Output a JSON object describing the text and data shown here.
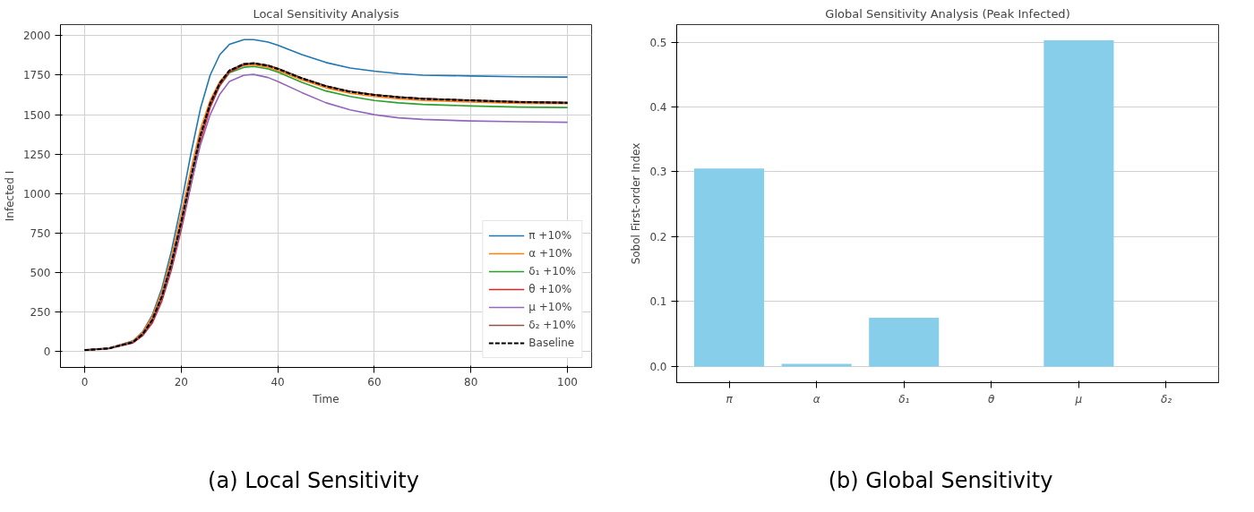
{
  "chart_data": [
    {
      "type": "line",
      "title": "Local Sensitivity Analysis",
      "xlabel": "Time",
      "ylabel": "Infected I",
      "annotations": [
        "(a) Local Sensitivity"
      ],
      "x": [
        0,
        5,
        10,
        12,
        14,
        16,
        18,
        20,
        22,
        24,
        26,
        28,
        30,
        33,
        35,
        38,
        40,
        45,
        50,
        55,
        60,
        65,
        70,
        80,
        90,
        100
      ],
      "xlim": [
        -5,
        105
      ],
      "xticks": [
        0,
        20,
        40,
        60,
        80,
        100
      ],
      "ylim": [
        -100,
        2070
      ],
      "yticks": [
        0,
        250,
        500,
        750,
        1000,
        1250,
        1500,
        1750,
        2000
      ],
      "grid": true,
      "legend": "bottom right",
      "line_style": "solid",
      "marker": "none",
      "series": [
        {
          "name": "π +10%",
          "color": "#1f77b4",
          "values": [
            10,
            22,
            68,
            125,
            230,
            400,
            640,
            930,
            1250,
            1540,
            1750,
            1880,
            1945,
            1975,
            1975,
            1960,
            1940,
            1880,
            1830,
            1795,
            1775,
            1760,
            1750,
            1745,
            1740,
            1738
          ]
        },
        {
          "name": "α +10%",
          "color": "#ff7f0e",
          "values": [
            10,
            22,
            66,
            122,
            220,
            380,
            600,
            870,
            1150,
            1410,
            1590,
            1710,
            1780,
            1812,
            1815,
            1800,
            1780,
            1720,
            1670,
            1635,
            1615,
            1600,
            1590,
            1580,
            1572,
            1570
          ]
        },
        {
          "name": "δ₁ +10%",
          "color": "#2ca02c",
          "values": [
            null,
            null,
            null,
            null,
            null,
            null,
            null,
            null,
            null,
            null,
            1555,
            1685,
            1765,
            1800,
            1805,
            1790,
            1770,
            1705,
            1650,
            1615,
            1590,
            1575,
            1565,
            1555,
            1548,
            1545
          ]
        },
        {
          "name": "θ +10%",
          "color": "#d62728",
          "values": [
            10,
            19,
            55,
            100,
            180,
            320,
            520,
            770,
            1050,
            1330,
            1545,
            1685,
            1770,
            1815,
            1825,
            1812,
            1792,
            1732,
            1682,
            1647,
            1627,
            1612,
            1602,
            1590,
            1580,
            1575
          ]
        },
        {
          "name": "μ +10%",
          "color": "#9467bd",
          "values": [
            10,
            20,
            60,
            108,
            195,
            340,
            540,
            790,
            1060,
            1310,
            1500,
            1630,
            1710,
            1750,
            1755,
            1735,
            1710,
            1640,
            1575,
            1530,
            1500,
            1480,
            1470,
            1460,
            1455,
            1452
          ]
        },
        {
          "name": "δ₂ +10%",
          "color": "#8c564b",
          "values": [
            10,
            20,
            60,
            110,
            200,
            350,
            560,
            820,
            1100,
            1370,
            1570,
            1700,
            1780,
            1822,
            1828,
            1812,
            1792,
            1732,
            1682,
            1647,
            1627,
            1612,
            1602,
            1592,
            1582,
            1578
          ]
        },
        {
          "name": "Baseline",
          "color": "#000000",
          "line_style": "dashed",
          "values": [
            10,
            20,
            60,
            110,
            200,
            350,
            560,
            820,
            1100,
            1370,
            1570,
            1700,
            1780,
            1820,
            1825,
            1810,
            1790,
            1730,
            1680,
            1645,
            1625,
            1610,
            1600,
            1590,
            1580,
            1575
          ]
        }
      ]
    },
    {
      "type": "bar",
      "title": "Global Sensitivity Analysis (Peak Infected)",
      "ylabel": "Sobol First-order Index",
      "annotations": [
        "(b) Global Sensitivity"
      ],
      "categories": [
        "π",
        "α",
        "δ₁",
        "θ",
        "μ",
        "δ₂"
      ],
      "values": [
        0.305,
        0.004,
        0.075,
        0,
        0.503,
        0
      ],
      "color": "#87ceeb",
      "ylim": [
        -0.025,
        0.527
      ],
      "yticks": [
        {
          "value": 0,
          "label": "0.0"
        },
        0.1,
        0.2,
        0.3,
        0.4,
        0.5
      ],
      "grid": "y",
      "legend": false
    }
  ]
}
